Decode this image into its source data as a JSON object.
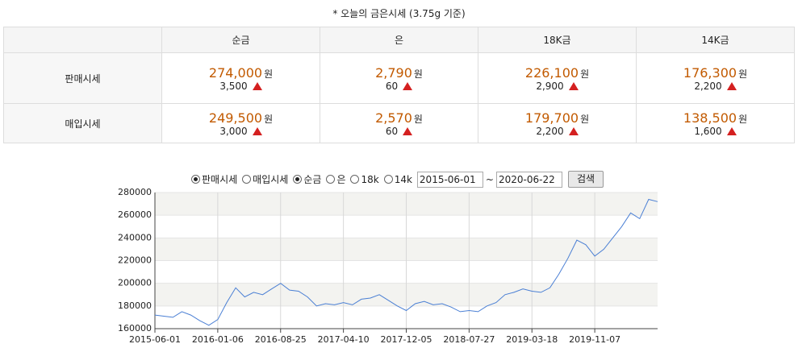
{
  "header": {
    "note": "* 오늘의 금은시세 (3.75g 기준)"
  },
  "table": {
    "columns": [
      "순금",
      "은",
      "18K금",
      "14K금"
    ],
    "rows": [
      {
        "label": "판매시세",
        "cells": [
          {
            "price": "274,000",
            "unit": "원",
            "change": "3,500"
          },
          {
            "price": "2,790",
            "unit": "원",
            "change": "60"
          },
          {
            "price": "226,100",
            "unit": "원",
            "change": "2,900"
          },
          {
            "price": "176,300",
            "unit": "원",
            "change": "2,200"
          }
        ]
      },
      {
        "label": "매입시세",
        "cells": [
          {
            "price": "249,500",
            "unit": "원",
            "change": "3,000"
          },
          {
            "price": "2,570",
            "unit": "원",
            "change": "60"
          },
          {
            "price": "179,700",
            "unit": "원",
            "change": "2,200"
          },
          {
            "price": "138,500",
            "unit": "원",
            "change": "1,600"
          }
        ]
      }
    ]
  },
  "form": {
    "radios": [
      {
        "label": "판매시세",
        "checked": true
      },
      {
        "label": "매입시세",
        "checked": false
      },
      {
        "label": "순금",
        "checked": true
      },
      {
        "label": "은",
        "checked": false
      },
      {
        "label": "18k",
        "checked": false
      },
      {
        "label": "14k",
        "checked": false
      }
    ],
    "start_date": "2015-06-01",
    "separator": "~",
    "end_date": "2020-06-22",
    "button": "검색"
  },
  "chart_data": {
    "type": "line",
    "color": "#4a7fd4",
    "categories": [
      "2015-06-01",
      null,
      null,
      null,
      null,
      null,
      null,
      "2016-01-06",
      null,
      null,
      null,
      null,
      null,
      null,
      "2016-08-25",
      null,
      null,
      null,
      null,
      null,
      null,
      "2017-04-10",
      null,
      null,
      null,
      null,
      null,
      null,
      "2017-12-05",
      null,
      null,
      null,
      null,
      null,
      null,
      "2018-07-27",
      null,
      null,
      null,
      null,
      null,
      null,
      "2019-03-18",
      null,
      null,
      null,
      null,
      null,
      null,
      "2019-11-07",
      null,
      null,
      null,
      null,
      null,
      null,
      null
    ],
    "values": [
      172000,
      171000,
      170000,
      175000,
      172000,
      167000,
      163000,
      168000,
      183000,
      196000,
      188000,
      192000,
      190000,
      195000,
      200000,
      194000,
      193000,
      188000,
      180000,
      182000,
      181000,
      183000,
      181000,
      186000,
      187000,
      190000,
      185000,
      180000,
      176000,
      182000,
      184000,
      181000,
      182000,
      179000,
      175000,
      176000,
      175000,
      180000,
      183000,
      190000,
      192000,
      195000,
      193000,
      192000,
      196000,
      208000,
      222000,
      238000,
      234000,
      224000,
      230000,
      240000,
      250000,
      262000,
      257000,
      274000,
      272000
    ],
    "ylim": [
      160000,
      280000
    ],
    "yticks": [
      160000,
      180000,
      200000,
      220000,
      240000,
      260000,
      280000
    ],
    "grid": true
  }
}
